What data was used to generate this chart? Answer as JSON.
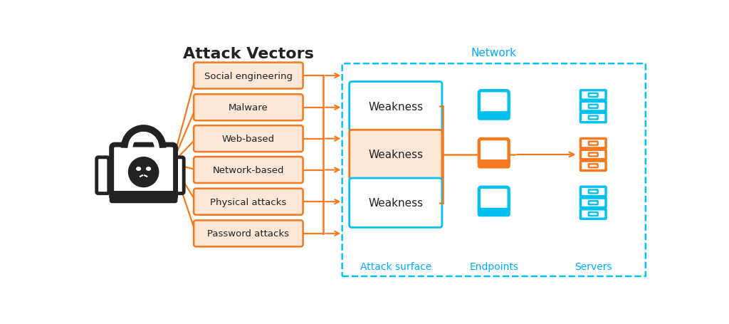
{
  "bg_color": "#ffffff",
  "title": "Attack Vectors",
  "orange": "#f47920",
  "orange_fill": "#fde8d8",
  "cyan": "#00c0f0",
  "dark": "#222222",
  "label_color": "#00aaff",
  "attack_vectors": [
    "Social engineering",
    "Malware",
    "Web-based",
    "Network-based",
    "Physical attacks",
    "Password attacks"
  ],
  "weaknesses": [
    "Weakness",
    "Weakness",
    "Weakness"
  ],
  "weakness_highlighted": 1,
  "network_label": "Network",
  "attack_surface_label": "Attack surface",
  "endpoints_label": "Endpoints",
  "servers_label": "Servers"
}
